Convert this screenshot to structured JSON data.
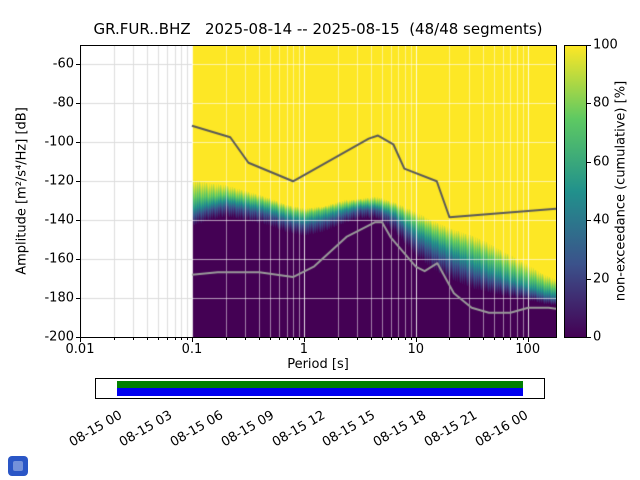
{
  "title": "GR.FUR..BHZ   2025-08-14 -- 2025-08-15  (48/48 segments)",
  "axes": {
    "xlabel": "Period [s]",
    "ylabel": "Amplitude [m²/s⁴/Hz] [dB]",
    "x_tick_labels": [
      "0.01",
      "0.1",
      "1",
      "10",
      "100"
    ],
    "x_tick_values": [
      0.01,
      0.1,
      1,
      10,
      100
    ],
    "y_tick_labels": [
      "-60",
      "-80",
      "-100",
      "-120",
      "-140",
      "-160",
      "-180",
      "-200"
    ],
    "y_tick_values": [
      -60,
      -80,
      -100,
      -120,
      -140,
      -160,
      -180,
      -200
    ]
  },
  "colorbar": {
    "label": "non-exceedance (cumulative) [%]",
    "tick_labels": [
      "0",
      "20",
      "40",
      "60",
      "80",
      "100"
    ],
    "tick_values": [
      0,
      20,
      40,
      60,
      80,
      100
    ],
    "colormap": "viridis",
    "stops": [
      "#440154",
      "#3b528b",
      "#21918c",
      "#5ec962",
      "#fde725"
    ]
  },
  "timeline": {
    "tick_labels": [
      "08-15 00",
      "08-15 03",
      "08-15 06",
      "08-15 09",
      "08-15 12",
      "08-15 15",
      "08-15 18",
      "08-15 21",
      "08-16 00"
    ],
    "green": "#007f00",
    "blue": "#0000f0"
  },
  "icons": {
    "app_icon": "blue-window-icon"
  },
  "chart_data": {
    "type": "heatmap",
    "subtype": "ppsd-cumulative",
    "title": "GR.FUR..BHZ   2025-08-14 -- 2025-08-15  (48/48 segments)",
    "station": "GR.FUR..BHZ",
    "date_range": "2025-08-14 -- 2025-08-15",
    "segments": "48/48",
    "xlabel": "Period [s]",
    "ylabel": "Amplitude [m²/s⁴/Hz] [dB]",
    "xscale": "log",
    "xlim": [
      0.01,
      179
    ],
    "ylim": [
      -200,
      -50
    ],
    "grid": true,
    "colorbar_label": "non-exceedance (cumulative) [%]",
    "colorbar_range": [
      0,
      100
    ],
    "distribution": {
      "description": "PSD amplitude (dB) at cumulative non-exceedance fractions per period; below min = 0%, above max = 100%",
      "fractions": [
        0,
        0.25,
        0.5,
        0.75,
        1
      ],
      "periods": [
        0.1,
        0.14,
        0.2,
        0.3,
        0.45,
        0.7,
        1.0,
        1.5,
        2.2,
        3.2,
        4.5,
        6.5,
        10,
        15,
        22,
        32,
        45,
        65,
        100,
        140,
        200
      ],
      "percentile_db": [
        [
          -143,
          -138,
          -134,
          -128,
          -119
        ],
        [
          -140,
          -135,
          -132,
          -128,
          -121
        ],
        [
          -138,
          -133,
          -130,
          -127,
          -122
        ],
        [
          -140,
          -135,
          -132,
          -129,
          -125
        ],
        [
          -142,
          -137,
          -134,
          -131,
          -128
        ],
        [
          -146,
          -141,
          -138,
          -135,
          -132
        ],
        [
          -148,
          -143,
          -140,
          -137,
          -134
        ],
        [
          -146,
          -141,
          -138,
          -135,
          -133
        ],
        [
          -142,
          -138,
          -135,
          -133,
          -130
        ],
        [
          -139,
          -135,
          -133,
          -131,
          -129
        ],
        [
          -139,
          -135,
          -133,
          -131,
          -128
        ],
        [
          -146,
          -140,
          -137,
          -134,
          -131
        ],
        [
          -158,
          -151,
          -146,
          -141,
          -136
        ],
        [
          -166,
          -158,
          -152,
          -147,
          -141
        ],
        [
          -171,
          -163,
          -157,
          -151,
          -145
        ],
        [
          -175,
          -168,
          -162,
          -155,
          -148
        ],
        [
          -177,
          -171,
          -166,
          -159,
          -152
        ],
        [
          -179,
          -174,
          -170,
          -164,
          -157
        ],
        [
          -181,
          -177,
          -174,
          -169,
          -163
        ],
        [
          -183,
          -180,
          -177,
          -173,
          -168
        ],
        [
          -184,
          -182,
          -179,
          -176,
          -172
        ]
      ]
    },
    "noise_models": {
      "nhnm": {
        "name": "Peterson NHNM",
        "periods": [
          0.1,
          0.22,
          0.32,
          0.8,
          3.8,
          4.6,
          6.3,
          7.9,
          15.4,
          20.0,
          200.0
        ],
        "db": [
          -91.5,
          -97.4,
          -110.5,
          -120.0,
          -98.1,
          -96.5,
          -101.0,
          -113.5,
          -120.0,
          -138.5,
          -133.9
        ]
      },
      "nlnm": {
        "name": "Peterson NLNM",
        "periods": [
          0.1,
          0.17,
          0.4,
          0.8,
          1.24,
          2.4,
          4.3,
          5.0,
          6.0,
          10.0,
          12.0,
          15.6,
          21.9,
          31.6,
          45.0,
          70.0,
          101.0,
          154.0,
          200.0
        ],
        "db": [
          -168.0,
          -166.7,
          -166.7,
          -169.2,
          -163.7,
          -148.6,
          -141.1,
          -141.1,
          -149.0,
          -163.8,
          -166.2,
          -162.1,
          -177.5,
          -185.0,
          -187.5,
          -187.5,
          -185.0,
          -185.0,
          -185.9
        ]
      }
    }
  }
}
